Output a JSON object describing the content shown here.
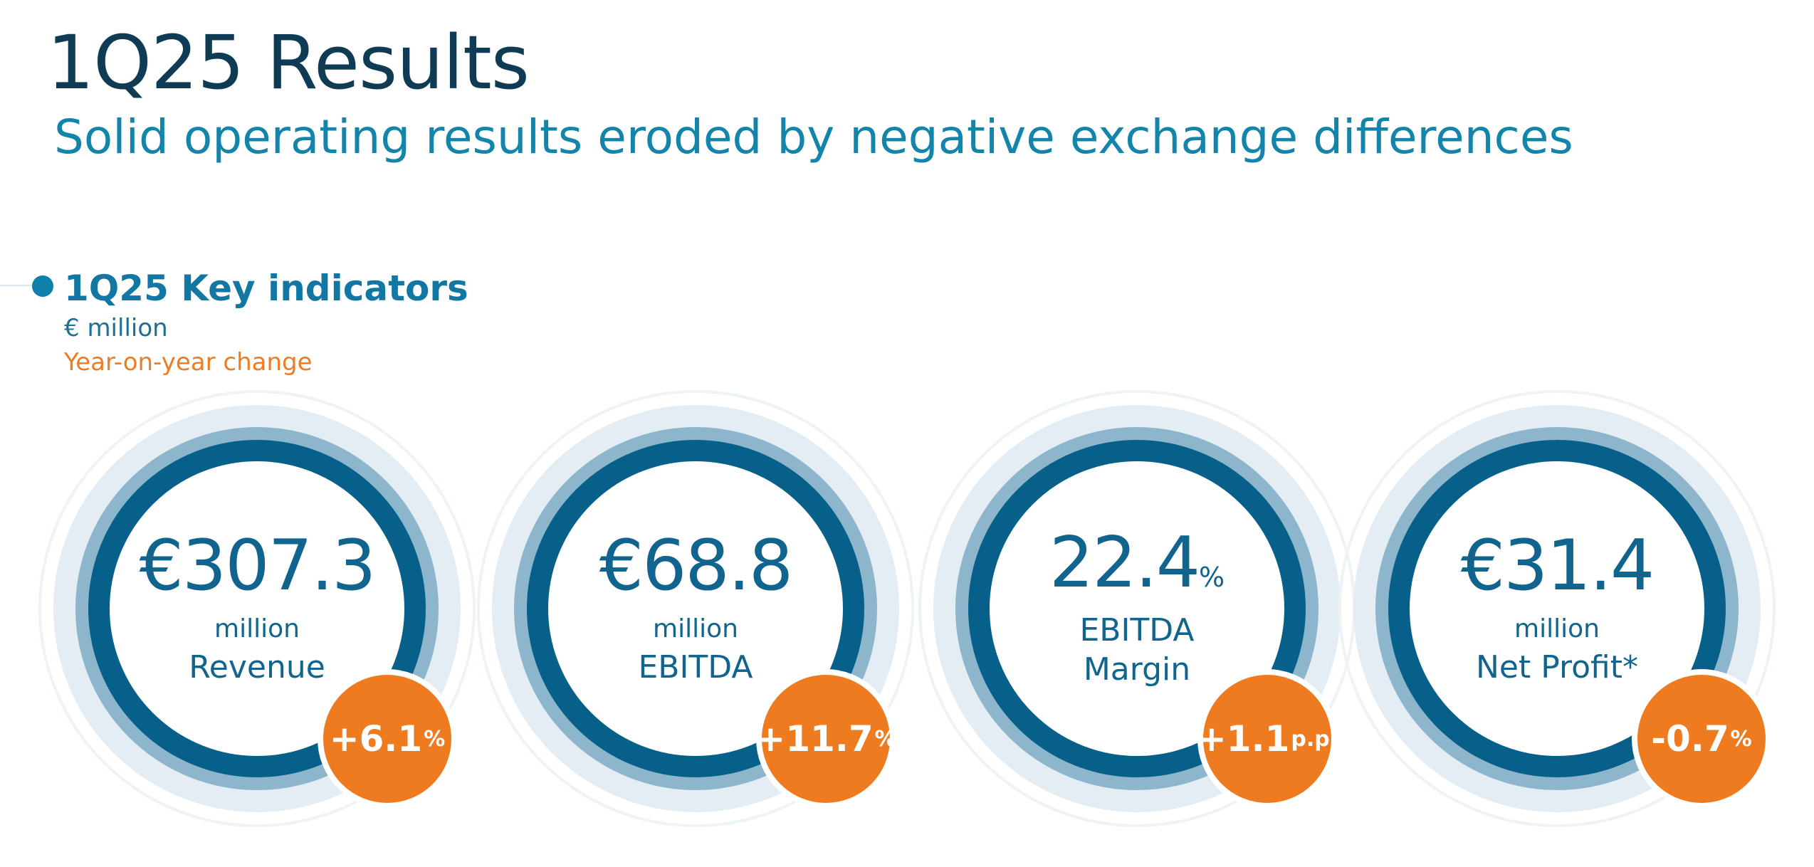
{
  "header": {
    "title": "1Q25 Results",
    "subtitle": "Solid operating results eroded by negative exchange differences"
  },
  "key_indicators": {
    "title": "1Q25 Key indicators",
    "unit": "€ million",
    "change_label": "Year-on-year change"
  },
  "colors": {
    "navy": "#0f3b55",
    "teal": "#1385ab",
    "ring_dark": "#07608a",
    "ring_mid": "#8db6cc",
    "ring_light": "#e3edf3",
    "orange": "#ee7b1f"
  },
  "kpis": [
    {
      "value": "€307.3",
      "unit": "million",
      "label": "Revenue",
      "change": "+6.1",
      "change_suffix": "%"
    },
    {
      "value": "€68.8",
      "unit": "million",
      "label": "EBITDA",
      "change": "+11.7",
      "change_suffix": "%"
    },
    {
      "value": "22.4",
      "value_suffix": "%",
      "label": "EBITDA",
      "label2": "Margin",
      "change": "+1.1",
      "change_suffix": "p.p."
    },
    {
      "value": "€31.4",
      "unit": "million",
      "label": "Net Profit*",
      "change": "-0.7",
      "change_suffix": "%"
    }
  ]
}
